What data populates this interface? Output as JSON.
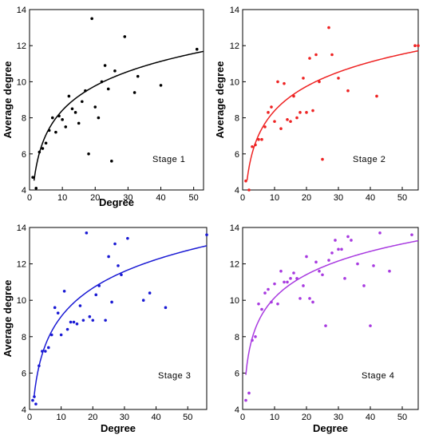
{
  "chart_data": [
    {
      "type": "scatter",
      "annotation": "Stage 1",
      "xlabel": "Degree",
      "ylabel": "Average degree",
      "xlim": [
        0,
        53
      ],
      "ylim": [
        4,
        14
      ],
      "xticks": [
        0,
        10,
        20,
        30,
        40,
        50
      ],
      "yticks": [
        4,
        6,
        8,
        10,
        12,
        14
      ],
      "color": "#000000",
      "points": [
        [
          1,
          4.7
        ],
        [
          2,
          4.1
        ],
        [
          3,
          6.1
        ],
        [
          4,
          6.3
        ],
        [
          5,
          6.6
        ],
        [
          6,
          7.3
        ],
        [
          7,
          8.0
        ],
        [
          8,
          7.2
        ],
        [
          9,
          8.1
        ],
        [
          10,
          7.9
        ],
        [
          11,
          7.5
        ],
        [
          12,
          9.2
        ],
        [
          13,
          8.5
        ],
        [
          14,
          8.3
        ],
        [
          15,
          7.7
        ],
        [
          16,
          8.9
        ],
        [
          17,
          9.5
        ],
        [
          18,
          6.0
        ],
        [
          19,
          13.5
        ],
        [
          20,
          8.6
        ],
        [
          21,
          8.0
        ],
        [
          22,
          10.0
        ],
        [
          23,
          10.9
        ],
        [
          24,
          9.6
        ],
        [
          25,
          5.6
        ],
        [
          26,
          10.6
        ],
        [
          29,
          12.5
        ],
        [
          32,
          9.4
        ],
        [
          33,
          10.3
        ],
        [
          40,
          9.8
        ],
        [
          51,
          11.8
        ]
      ],
      "fit": {
        "a": 3.9,
        "b": 1.96
      }
    },
    {
      "type": "scatter",
      "annotation": "Stage 2",
      "xlabel": "",
      "ylabel": "Average degree",
      "xlim": [
        0,
        55
      ],
      "ylim": [
        4,
        14
      ],
      "xticks": [
        0,
        10,
        20,
        30,
        40,
        50
      ],
      "yticks": [
        4,
        6,
        8,
        10,
        12,
        14
      ],
      "color": "#ee2222",
      "points": [
        [
          1,
          4.5
        ],
        [
          2,
          4.0
        ],
        [
          3,
          6.4
        ],
        [
          4,
          6.5
        ],
        [
          5,
          6.8
        ],
        [
          6,
          6.8
        ],
        [
          7,
          7.5
        ],
        [
          8,
          8.3
        ],
        [
          9,
          8.6
        ],
        [
          10,
          7.8
        ],
        [
          11,
          10.0
        ],
        [
          12,
          7.4
        ],
        [
          13,
          9.9
        ],
        [
          14,
          7.9
        ],
        [
          15,
          7.8
        ],
        [
          16,
          9.2
        ],
        [
          17,
          8.0
        ],
        [
          18,
          8.3
        ],
        [
          19,
          10.2
        ],
        [
          20,
          8.3
        ],
        [
          21,
          11.3
        ],
        [
          22,
          8.4
        ],
        [
          23,
          11.5
        ],
        [
          24,
          10.0
        ],
        [
          25,
          5.7
        ],
        [
          27,
          13.0
        ],
        [
          28,
          11.5
        ],
        [
          30,
          10.2
        ],
        [
          33,
          9.5
        ],
        [
          42,
          9.2
        ],
        [
          54,
          12.0
        ],
        [
          55,
          12.0
        ]
      ],
      "fit": {
        "a": 3.9,
        "b": 1.95
      }
    },
    {
      "type": "scatter",
      "annotation": "Stage 3",
      "xlabel": "Degree",
      "ylabel": "Average degree",
      "xlim": [
        0,
        56
      ],
      "ylim": [
        4,
        14
      ],
      "xticks": [
        0,
        10,
        20,
        30,
        40,
        50
      ],
      "yticks": [
        4,
        6,
        8,
        10,
        12,
        14
      ],
      "color": "#1a1ad4",
      "points": [
        [
          1,
          4.5
        ],
        [
          1.5,
          4.7
        ],
        [
          2,
          4.3
        ],
        [
          3,
          6.4
        ],
        [
          4,
          7.2
        ],
        [
          5,
          7.2
        ],
        [
          6,
          7.4
        ],
        [
          7,
          8.1
        ],
        [
          8,
          9.6
        ],
        [
          9,
          9.3
        ],
        [
          10,
          8.1
        ],
        [
          11,
          10.5
        ],
        [
          12,
          8.4
        ],
        [
          13,
          8.8
        ],
        [
          14,
          8.8
        ],
        [
          15,
          8.7
        ],
        [
          16,
          9.7
        ],
        [
          17,
          8.9
        ],
        [
          18,
          13.7
        ],
        [
          19,
          9.1
        ],
        [
          20,
          8.9
        ],
        [
          21,
          10.3
        ],
        [
          22,
          10.8
        ],
        [
          24,
          8.9
        ],
        [
          25,
          12.4
        ],
        [
          26,
          9.9
        ],
        [
          27,
          13.1
        ],
        [
          28,
          11.9
        ],
        [
          29,
          11.4
        ],
        [
          31,
          13.4
        ],
        [
          36,
          10.0
        ],
        [
          38,
          10.4
        ],
        [
          43,
          9.6
        ],
        [
          56,
          13.6
        ]
      ],
      "fit": {
        "a": 3.9,
        "b": 2.26
      }
    },
    {
      "type": "scatter",
      "annotation": "Stage 4",
      "xlabel": "Degree",
      "ylabel": "",
      "xlim": [
        0,
        55
      ],
      "ylim": [
        4,
        14
      ],
      "xticks": [
        0,
        10,
        20,
        30,
        40,
        50
      ],
      "yticks": [
        4,
        6,
        8,
        10,
        12,
        14
      ],
      "color": "#a83ae0",
      "points": [
        [
          1,
          4.5
        ],
        [
          2,
          4.9
        ],
        [
          3,
          7.8
        ],
        [
          4,
          8.0
        ],
        [
          5,
          9.8
        ],
        [
          6,
          9.5
        ],
        [
          7,
          10.4
        ],
        [
          8,
          10.6
        ],
        [
          9,
          9.9
        ],
        [
          10,
          10.9
        ],
        [
          11,
          9.8
        ],
        [
          12,
          11.6
        ],
        [
          13,
          11.0
        ],
        [
          14,
          11.0
        ],
        [
          15,
          11.2
        ],
        [
          16,
          11.5
        ],
        [
          17,
          11.2
        ],
        [
          18,
          10.1
        ],
        [
          19,
          10.8
        ],
        [
          20,
          12.4
        ],
        [
          21,
          10.1
        ],
        [
          22,
          9.9
        ],
        [
          23,
          12.1
        ],
        [
          24,
          11.6
        ],
        [
          25,
          11.4
        ],
        [
          26,
          8.6
        ],
        [
          27,
          12.2
        ],
        [
          28,
          12.6
        ],
        [
          29,
          13.3
        ],
        [
          30,
          12.8
        ],
        [
          31,
          12.8
        ],
        [
          32,
          11.2
        ],
        [
          33,
          13.5
        ],
        [
          34,
          13.3
        ],
        [
          36,
          12.0
        ],
        [
          38,
          10.8
        ],
        [
          40,
          8.6
        ],
        [
          41,
          11.9
        ],
        [
          43,
          13.7
        ],
        [
          46,
          11.6
        ],
        [
          53,
          13.6
        ]
      ],
      "fit": {
        "a": 5.9,
        "b": 1.84
      }
    }
  ]
}
